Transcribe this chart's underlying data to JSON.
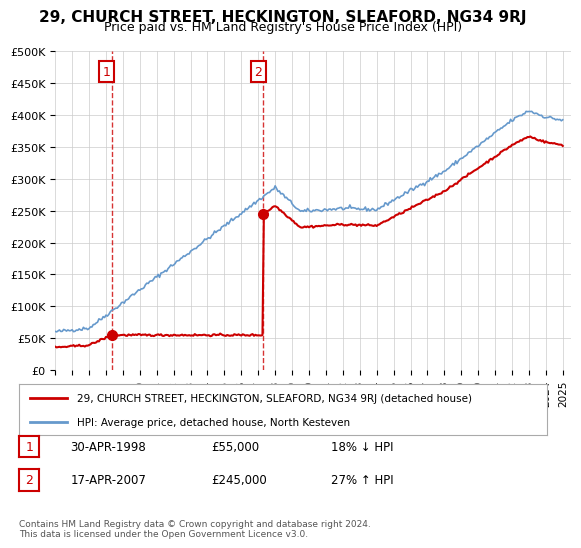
{
  "title": "29, CHURCH STREET, HECKINGTON, SLEAFORD, NG34 9RJ",
  "subtitle": "Price paid vs. HM Land Registry's House Price Index (HPI)",
  "legend_line1": "29, CHURCH STREET, HECKINGTON, SLEAFORD, NG34 9RJ (detached house)",
  "legend_line2": "HPI: Average price, detached house, North Kesteven",
  "footnote": "Contains HM Land Registry data © Crown copyright and database right 2024.\nThis data is licensed under the Open Government Licence v3.0.",
  "table_rows": [
    [
      "1",
      "30-APR-1998",
      "£55,000",
      "18% ↓ HPI"
    ],
    [
      "2",
      "17-APR-2007",
      "£245,000",
      "27% ↑ HPI"
    ]
  ],
  "price_color": "#cc0000",
  "hpi_color": "#6699cc",
  "dashed_color": "#cc0000",
  "marker_color": "#cc0000",
  "ylim": [
    0,
    500000
  ],
  "yticks": [
    0,
    50000,
    100000,
    150000,
    200000,
    250000,
    300000,
    350000,
    400000,
    450000,
    500000
  ],
  "ytick_labels": [
    "£0",
    "£50K",
    "£100K",
    "£150K",
    "£200K",
    "£250K",
    "£300K",
    "£350K",
    "£400K",
    "£450K",
    "£500K"
  ],
  "xtick_years": [
    1995,
    1996,
    1997,
    1998,
    1999,
    2000,
    2001,
    2002,
    2003,
    2004,
    2005,
    2006,
    2007,
    2008,
    2009,
    2010,
    2011,
    2012,
    2013,
    2014,
    2015,
    2016,
    2017,
    2018,
    2019,
    2020,
    2021,
    2022,
    2023,
    2024,
    2025
  ],
  "sale1_x": 1998.33,
  "sale1_price": 55000,
  "sale2_x": 2007.3,
  "sale2_price": 245000,
  "background_color": "#ffffff",
  "grid_color": "#cccccc"
}
